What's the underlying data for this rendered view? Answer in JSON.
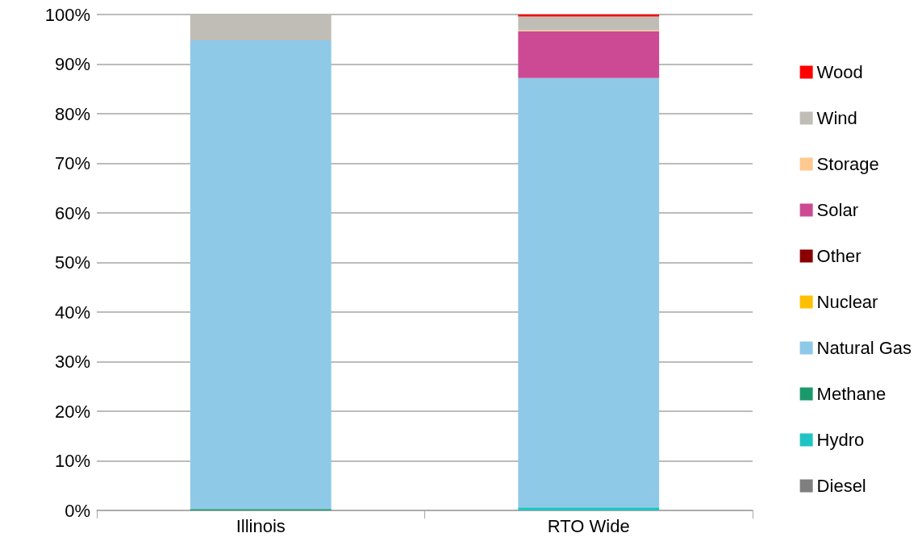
{
  "chart_data": {
    "type": "bar",
    "stacked": true,
    "categories": [
      "Illinois",
      "RTO Wide"
    ],
    "series": [
      {
        "name": "Diesel",
        "color": "#7f7f7f",
        "values": [
          0,
          null
        ]
      },
      {
        "name": "Hydro",
        "color": "#1fc4c4",
        "values": [
          0,
          0.6
        ]
      },
      {
        "name": "Methane",
        "color": "#1a9a6c",
        "values": [
          0.3,
          0
        ]
      },
      {
        "name": "Natural Gas",
        "color": "#8fc9e8",
        "values": [
          94.5,
          86.6
        ]
      },
      {
        "name": "Nuclear",
        "color": "#ffc000",
        "values": [
          0,
          0
        ]
      },
      {
        "name": "Other",
        "color": "#8b0000",
        "values": [
          0,
          0
        ]
      },
      {
        "name": "Solar",
        "color": "#cc4a93",
        "values": [
          0,
          9.4
        ]
      },
      {
        "name": "Storage",
        "color": "#ffc88f",
        "values": [
          0,
          0.2
        ]
      },
      {
        "name": "Wind",
        "color": "#c0bdb6",
        "values": [
          5.2,
          2.8
        ]
      },
      {
        "name": "Wood",
        "color": "#ff0000",
        "values": [
          0,
          0.4
        ]
      }
    ],
    "ylim": [
      0,
      100
    ],
    "yticks": [
      {
        "value": 0,
        "label": "0%"
      },
      {
        "value": 10,
        "label": "10%"
      },
      {
        "value": 20,
        "label": "20%"
      },
      {
        "value": 30,
        "label": "30%"
      },
      {
        "value": 40,
        "label": "40%"
      },
      {
        "value": 50,
        "label": "50%"
      },
      {
        "value": 60,
        "label": "60%"
      },
      {
        "value": 70,
        "label": "70%"
      },
      {
        "value": 80,
        "label": "80%"
      },
      {
        "value": 90,
        "label": "90%"
      },
      {
        "value": 100,
        "label": "100%"
      }
    ],
    "grid": "y",
    "legend": "right"
  }
}
